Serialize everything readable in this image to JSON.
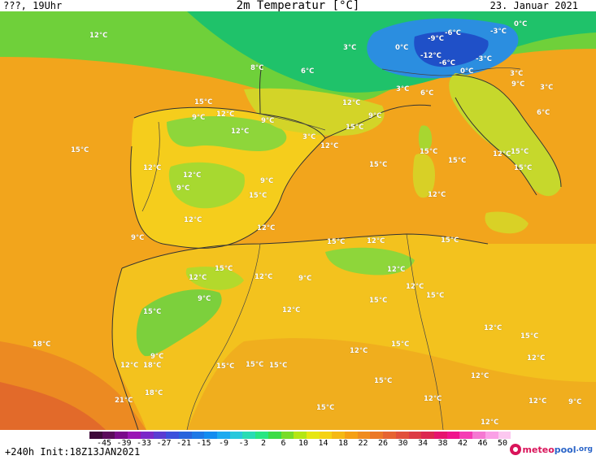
{
  "header": {
    "left": "???, 19Uhr",
    "title": "2m Temperatur [°C]",
    "date": "23. Januar 2021"
  },
  "footer": {
    "forecast": "+240h",
    "init": "Init:18Z13JAN2021"
  },
  "logo": {
    "part1": "meteo",
    "part2": "pool",
    "part3": ".org"
  },
  "colors": {
    "sea_orange": "#f2a51c",
    "land_yellow": "#f5cd1c",
    "cold_green": "#25c25a",
    "alps_blue": "#1f64d6",
    "hot_red": "#e0722c"
  },
  "scale": {
    "ticks": [
      "-45",
      "-39",
      "-33",
      "-27",
      "-21",
      "-15",
      "-9",
      "-3",
      "2",
      "6",
      "10",
      "14",
      "18",
      "22",
      "26",
      "30",
      "34",
      "38",
      "42",
      "46",
      "50"
    ],
    "colors": [
      "#3d0a3a",
      "#5a0a5a",
      "#7a0a8a",
      "#9a14b4",
      "#7a28c8",
      "#5a3cd2",
      "#3c50dc",
      "#2864dc",
      "#1e78e6",
      "#148cf0",
      "#1eaaf0",
      "#28c8dc",
      "#28dcb4",
      "#28e682",
      "#3cdc46",
      "#78dc28",
      "#b4e614",
      "#e6e614",
      "#f5d214",
      "#f5b914",
      "#f5a014",
      "#f08c1e",
      "#eb7828",
      "#e66432",
      "#e1503c",
      "#dc3c46",
      "#dc2850",
      "#e6146e",
      "#f0148c",
      "#f53cb4",
      "#f578d2",
      "#faa0e6",
      "#fcc8f0"
    ]
  },
  "labels": [
    {
      "text": "12°C"
    },
    {
      "text": "8°C"
    },
    {
      "text": "6°C"
    },
    {
      "text": "3°C"
    },
    {
      "text": "0°C"
    },
    {
      "text": "-6°C"
    },
    {
      "text": "-3°C"
    },
    {
      "text": "-9°C"
    },
    {
      "text": "-12°C"
    },
    {
      "text": "-6°C"
    },
    {
      "text": "-3°C"
    },
    {
      "text": "0°C"
    },
    {
      "text": "0°C"
    },
    {
      "text": "3°C"
    },
    {
      "text": "9°C"
    },
    {
      "text": "3°C"
    },
    {
      "text": "15°C"
    },
    {
      "text": "12°C"
    },
    {
      "text": "9°C"
    },
    {
      "text": "12°C"
    },
    {
      "text": "9°C"
    },
    {
      "text": "3°C"
    },
    {
      "text": "12°C"
    },
    {
      "text": "15°C"
    },
    {
      "text": "9°C"
    },
    {
      "text": "3°C"
    },
    {
      "text": "6°C"
    },
    {
      "text": "12°C"
    },
    {
      "text": "15°C"
    },
    {
      "text": "6°C"
    },
    {
      "text": "15°C"
    },
    {
      "text": "12°C"
    },
    {
      "text": "12°C"
    },
    {
      "text": "9°C"
    },
    {
      "text": "15°C"
    },
    {
      "text": "9°C"
    },
    {
      "text": "12°C"
    },
    {
      "text": "9°C"
    },
    {
      "text": "12°C"
    },
    {
      "text": "15°C"
    },
    {
      "text": "15°C"
    },
    {
      "text": "12°C"
    },
    {
      "text": "15°C"
    },
    {
      "text": "15°C"
    },
    {
      "text": "12°C"
    },
    {
      "text": "15°C"
    },
    {
      "text": "12°C"
    },
    {
      "text": "15°C"
    },
    {
      "text": "15°C"
    },
    {
      "text": "12°C"
    },
    {
      "text": "12°C"
    },
    {
      "text": "9°C"
    },
    {
      "text": "12°C"
    },
    {
      "text": "12°C"
    },
    {
      "text": "15°C"
    },
    {
      "text": "12°C"
    },
    {
      "text": "15°C"
    },
    {
      "text": "9°C"
    },
    {
      "text": "15°C"
    },
    {
      "text": "15°C"
    },
    {
      "text": "12°C"
    },
    {
      "text": "15°C"
    },
    {
      "text": "18°C"
    },
    {
      "text": "12°C"
    },
    {
      "text": "9°C"
    },
    {
      "text": "12°C"
    },
    {
      "text": "18°C"
    },
    {
      "text": "15°C"
    },
    {
      "text": "15°C"
    },
    {
      "text": "15°C"
    },
    {
      "text": "15°C"
    },
    {
      "text": "12°C"
    },
    {
      "text": "12°C"
    },
    {
      "text": "21°C"
    },
    {
      "text": "18°C"
    },
    {
      "text": "15°C"
    },
    {
      "text": "12°C"
    },
    {
      "text": "12°C"
    },
    {
      "text": "9°C"
    },
    {
      "text": "12°C"
    }
  ]
}
